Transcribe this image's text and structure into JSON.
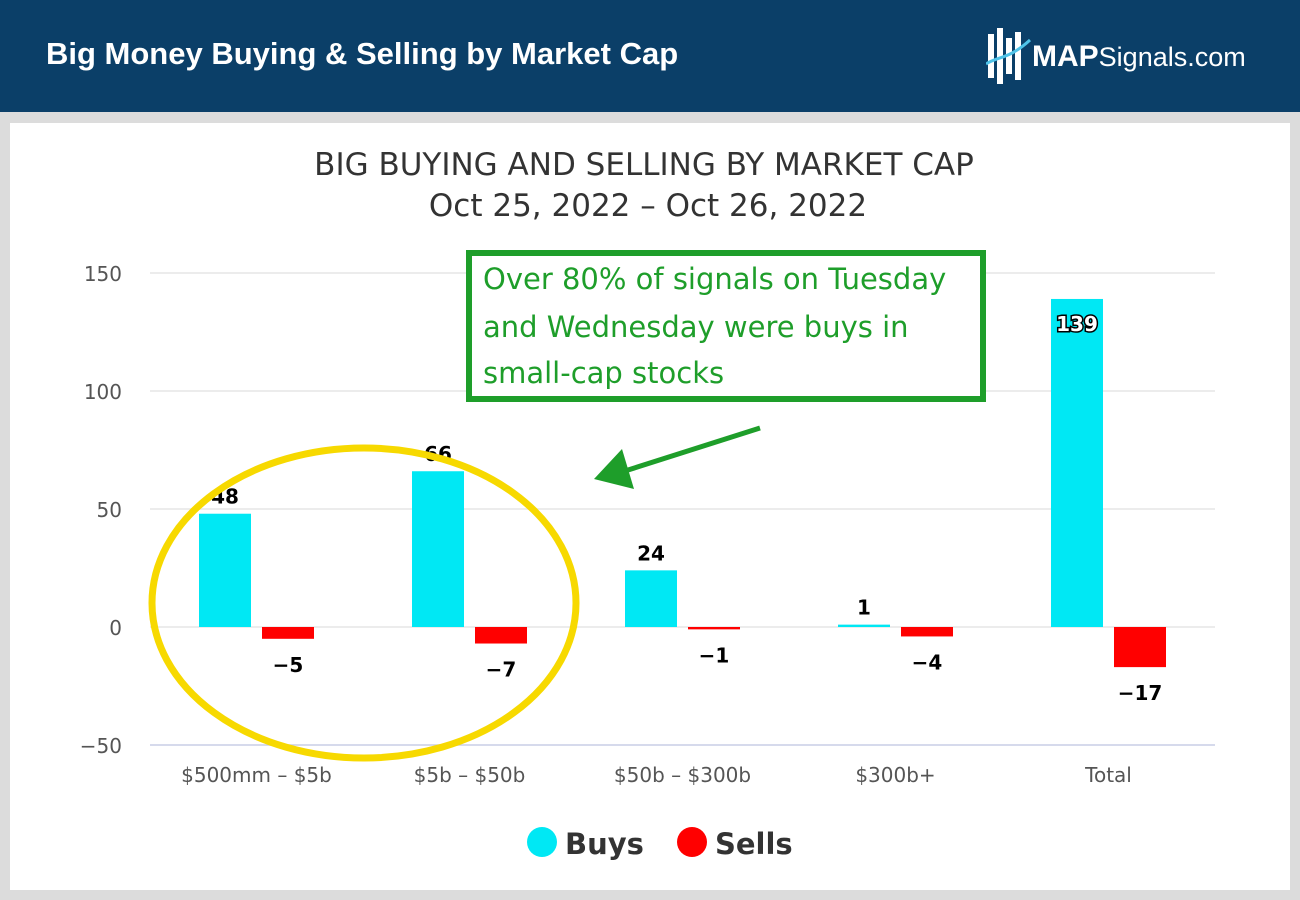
{
  "header": {
    "title": "Big Money Buying & Selling by Market Cap",
    "logo_brand": "MAP",
    "logo_rest": "Signals.com"
  },
  "colors": {
    "header_bg": "#0b3f68",
    "buys": "#00e8f4",
    "sells": "#ff0000",
    "annotation": "#1e9e2a",
    "highlight_ellipse": "#f7d900"
  },
  "chart_data": {
    "type": "bar",
    "title": "BIG BUYING AND SELLING BY MARKET CAP",
    "subtitle": "Oct 25, 2022 – Oct 26, 2022",
    "categories": [
      "$500mm – $5b",
      "$5b – $50b",
      "$50b – $300b",
      "$300b+",
      "Total"
    ],
    "series": [
      {
        "name": "Buys",
        "values": [
          48,
          66,
          24,
          1,
          139
        ]
      },
      {
        "name": "Sells",
        "values": [
          -5,
          -7,
          -1,
          -4,
          -17
        ]
      }
    ],
    "data_labels": {
      "buys": [
        "48",
        "66",
        "24",
        "1",
        "139"
      ],
      "sells": [
        "−5",
        "−7",
        "−1",
        "−4",
        "−17"
      ]
    },
    "yticks": [
      150,
      100,
      50,
      0,
      -50
    ],
    "ytick_labels": [
      "150",
      "100",
      "50",
      "0",
      "−50"
    ],
    "ylim": [
      -50,
      150
    ],
    "grid": true,
    "legend_position": "bottom-center",
    "xlabel": "",
    "ylabel": ""
  },
  "annotation": {
    "lines": [
      "Over 80% of signals on Tuesday",
      "and Wednesday were buys in",
      "small-cap stocks"
    ]
  }
}
